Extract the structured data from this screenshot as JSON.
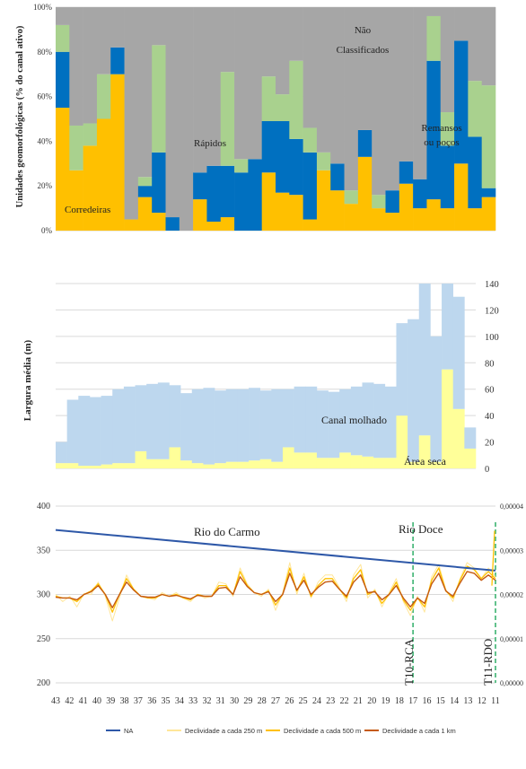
{
  "charts": [
    {
      "type": "bar",
      "stacked": true,
      "ylabel": "Unidades geomorfológicas (% do canal ativo)",
      "ylim": [
        0,
        100
      ],
      "yticks": [
        "0%",
        "20%",
        "40%",
        "60%",
        "80%",
        "100%"
      ],
      "grid": true,
      "annotations": [
        "Corredeiras",
        "Rápidos",
        "Não Classificados",
        "Remansos ou poços"
      ],
      "colors": {
        "corredeiras": "#ffc000",
        "remansos": "#0070c0",
        "rapidos": "#a9d18e",
        "nao_classificados": "#a6a6a6"
      },
      "series": [
        {
          "key": "corredeiras",
          "values": [
            55,
            27,
            38,
            50,
            70,
            5,
            15,
            8,
            0,
            0,
            14,
            4,
            6,
            0,
            0,
            26,
            17,
            16,
            5,
            27,
            18,
            12,
            33,
            10,
            8,
            21,
            10,
            14,
            10,
            30,
            10,
            15
          ]
        },
        {
          "key": "remansos",
          "values": [
            25,
            0,
            0,
            0,
            12,
            0,
            5,
            27,
            6,
            0,
            12,
            25,
            23,
            26,
            32,
            23,
            32,
            25,
            30,
            0,
            12,
            0,
            12,
            0,
            10,
            10,
            13,
            62,
            28,
            55,
            32,
            4
          ]
        },
        {
          "key": "rapidos",
          "values": [
            12,
            20,
            10,
            20,
            0,
            0,
            4,
            48,
            0,
            0,
            0,
            0,
            42,
            6,
            0,
            20,
            12,
            35,
            11,
            8,
            0,
            6,
            0,
            6,
            0,
            0,
            0,
            20,
            15,
            0,
            25,
            46
          ]
        }
      ]
    },
    {
      "type": "bar",
      "stacked": true,
      "ylabel": "Largura média (m)",
      "ylim": [
        0,
        140
      ],
      "yticks": [
        "0",
        "20",
        "40",
        "60",
        "80",
        "100",
        "120",
        "140"
      ],
      "grid": true,
      "annotations": [
        "Canal molhado",
        "Área seca"
      ],
      "colors": {
        "seca": "#ffff99",
        "molhado": "#bdd7ee"
      },
      "series": [
        {
          "key": "seca",
          "values": [
            4,
            4,
            2,
            2,
            3,
            4,
            4,
            13,
            7,
            7,
            16,
            6,
            4,
            3,
            4,
            5,
            5,
            6,
            7,
            5,
            16,
            12,
            12,
            8,
            8,
            12,
            10,
            9,
            8,
            8,
            40,
            5,
            25,
            5,
            75,
            45,
            15
          ]
        },
        {
          "key": "molhado",
          "values": [
            16,
            48,
            53,
            52,
            52,
            56,
            58,
            50,
            57,
            58,
            47,
            51,
            56,
            58,
            55,
            55,
            55,
            55,
            52,
            55,
            44,
            50,
            50,
            51,
            50,
            48,
            52,
            56,
            56,
            54,
            70,
            108,
            115,
            95,
            65,
            85,
            16
          ]
        }
      ]
    },
    {
      "type": "line",
      "ylim": [
        200,
        400
      ],
      "yticks": [
        "200",
        "250",
        "300",
        "350",
        "400"
      ],
      "y2ticks": [
        "0,00000",
        "0,00001",
        "0,00002",
        "0,00003",
        "0,00004"
      ],
      "xticks": [
        "43",
        "42",
        "41",
        "40",
        "39",
        "38",
        "37",
        "36",
        "35",
        "34",
        "33",
        "32",
        "31",
        "30",
        "29",
        "28",
        "27",
        "26",
        "25",
        "24",
        "23",
        "22",
        "21",
        "20",
        "19",
        "18",
        "17",
        "16",
        "15",
        "14",
        "13",
        "12",
        "11"
      ],
      "grid": true,
      "annotations": [
        "Rio do Carmo",
        "Rio Doce",
        "T10-RCA",
        "T11-RDO"
      ],
      "na_line": {
        "x": [
          43,
          11
        ],
        "y": [
          373,
          327
        ]
      },
      "colors": {
        "na": "#2e58a8",
        "d250": "#ffe699",
        "d500": "#ffc000",
        "d1k": "#c55a11",
        "marker": "#3cb371"
      },
      "series_250": [
        300,
        292,
        298,
        286,
        301,
        300,
        314,
        298,
        270,
        296,
        322,
        306,
        298,
        296,
        294,
        302,
        298,
        302,
        296,
        292,
        300,
        296,
        298,
        314,
        312,
        298,
        330,
        312,
        302,
        298,
        306,
        282,
        302,
        336,
        300,
        324,
        296,
        314,
        322,
        322,
        308,
        292,
        322,
        334,
        296,
        306,
        286,
        302,
        318,
        292,
        276,
        298,
        280,
        320,
        334,
        306,
        292,
        318,
        336,
        330,
        318,
        330,
        320
      ],
      "series_500": [
        298,
        296,
        296,
        292,
        300,
        304,
        312,
        300,
        280,
        300,
        318,
        306,
        298,
        296,
        296,
        300,
        298,
        300,
        296,
        294,
        300,
        298,
        298,
        310,
        310,
        300,
        326,
        310,
        302,
        300,
        304,
        288,
        300,
        330,
        304,
        320,
        298,
        310,
        318,
        318,
        306,
        296,
        318,
        328,
        300,
        304,
        290,
        300,
        314,
        294,
        282,
        296,
        286,
        316,
        330,
        304,
        296,
        316,
        332,
        328,
        318,
        326,
        318
      ],
      "series_1k": [
        297,
        296,
        296,
        294,
        300,
        303,
        310,
        300,
        285,
        300,
        314,
        305,
        298,
        297,
        297,
        300,
        298,
        299,
        297,
        295,
        299,
        298,
        298,
        307,
        308,
        300,
        320,
        309,
        302,
        300,
        303,
        292,
        300,
        324,
        305,
        316,
        300,
        308,
        314,
        315,
        306,
        298,
        314,
        322,
        302,
        303,
        294,
        300,
        310,
        296,
        286,
        296,
        290,
        312,
        324,
        304,
        298,
        313,
        326,
        324,
        316,
        322,
        316
      ],
      "legend": [
        "NA",
        "Declividade a cada 250 m",
        "Declividade a cada 500 m",
        "Declividade a cada 1 km"
      ]
    }
  ]
}
